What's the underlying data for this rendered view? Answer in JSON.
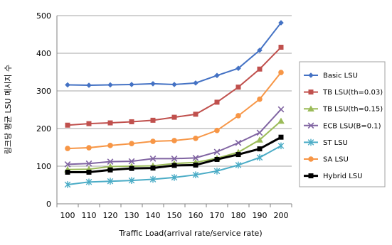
{
  "chart_data": {
    "type": "line",
    "title": "",
    "xlabel": "Traffic Load(arrival rate/service rate)",
    "ylabel": "링크당 평균 LSU 메시지 수",
    "x": [
      100,
      110,
      120,
      130,
      140,
      150,
      160,
      170,
      180,
      190,
      200
    ],
    "ylim": [
      0,
      500
    ],
    "yticks": [
      0,
      100,
      200,
      300,
      400,
      500
    ],
    "grid": true,
    "legend": "right",
    "series": [
      {
        "name": "Basic LSU",
        "color": "#4472C4",
        "marker": "diamond",
        "values": [
          316,
          315,
          316,
          317,
          319,
          317,
          321,
          341,
          360,
          408,
          481
        ]
      },
      {
        "name": "TB LSU(th=0.03)",
        "color": "#C0504D",
        "marker": "square",
        "values": [
          209,
          213,
          215,
          218,
          222,
          230,
          238,
          270,
          310,
          358,
          416
        ]
      },
      {
        "name": "TB LSU(th=0.15)",
        "color": "#9BBB59",
        "marker": "triangle",
        "values": [
          91,
          92,
          99,
          100,
          101,
          107,
          110,
          121,
          137,
          170,
          220
        ]
      },
      {
        "name": "ECB LSU(B=0.1)",
        "color": "#8064A2",
        "marker": "x",
        "values": [
          105,
          107,
          112,
          113,
          120,
          120,
          122,
          138,
          162,
          189,
          251
        ]
      },
      {
        "name": "ST LSU",
        "color": "#4BACC6",
        "marker": "star",
        "values": [
          51,
          58,
          60,
          62,
          65,
          70,
          77,
          87,
          103,
          123,
          154
        ]
      },
      {
        "name": "SA LSU",
        "color": "#F79646",
        "marker": "circle",
        "values": [
          147,
          149,
          155,
          160,
          166,
          168,
          174,
          195,
          234,
          278,
          349
        ]
      },
      {
        "name": "Hybrid LSU",
        "color": "#000000",
        "marker": "square",
        "values": [
          84,
          84,
          90,
          94,
          95,
          102,
          103,
          118,
          131,
          146,
          177
        ]
      }
    ]
  }
}
